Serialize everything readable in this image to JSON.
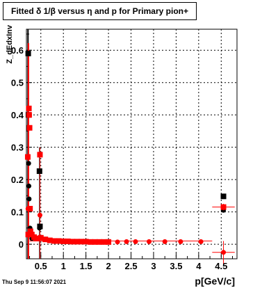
{
  "page_title": "Fitted δ 1/β versus η and p for Primary pion+",
  "timestamp": "Thu Sep  9 11:56:07 2021",
  "chart_data": {
    "type": "scatter",
    "title": "Fitted δ 1/β versus η and p for Primary pion+",
    "xlabel": "p[GeV/c]",
    "ylabel": "Z_dEdxInv",
    "xlim": [
      0.18,
      4.85
    ],
    "ylim": [
      -0.045,
      0.665
    ],
    "x_ticks": [
      0.5,
      1,
      1.5,
      2,
      2.5,
      3,
      3.5,
      4,
      4.5
    ],
    "x_tick_labels": [
      "0.5",
      "1",
      "1.5",
      "2",
      "2.5",
      "3",
      "3.5",
      "4",
      "4.5"
    ],
    "y_ticks": [
      0,
      0.1,
      0.2,
      0.3,
      0.4,
      0.5,
      0.6
    ],
    "y_tick_labels": [
      "0",
      "0.1",
      "0.2",
      "0.3",
      "0.4",
      "0.5",
      "0.6"
    ],
    "grid": true,
    "series": [
      {
        "color": "#000000",
        "points": [
          {
            "x": 0.22,
            "y": 0.59,
            "m": "square"
          },
          {
            "x": 0.225,
            "y": 0.4,
            "m": "square"
          },
          {
            "x": 0.23,
            "y": 0.25,
            "m": "circle"
          },
          {
            "x": 0.235,
            "y": 0.18,
            "m": "circle"
          },
          {
            "x": 0.24,
            "y": 0.14,
            "m": "circle"
          },
          {
            "x": 0.25,
            "y": 0.11,
            "m": "circle"
          },
          {
            "x": 0.26,
            "y": 0.05,
            "m": "circle"
          },
          {
            "x": 0.28,
            "y": 0.03,
            "m": "circle"
          },
          {
            "x": 0.3,
            "y": 0.018,
            "m": "circle"
          },
          {
            "x": 0.47,
            "y": 0.226,
            "m": "square"
          },
          {
            "x": 0.47,
            "y": 0.05,
            "m": "circle"
          },
          {
            "x": 0.48,
            "y": 0.055,
            "m": "square"
          },
          {
            "x": 4.55,
            "y": 0.148,
            "m": "square"
          },
          {
            "x": 4.55,
            "y": 0.105,
            "m": "circle"
          }
        ]
      },
      {
        "color": "#ff0000",
        "points": [
          {
            "x": 0.21,
            "y": 0.27,
            "m": "square"
          },
          {
            "x": 0.215,
            "y": 0.11,
            "m": "circle"
          },
          {
            "x": 0.22,
            "y": 0.03,
            "m": "square"
          },
          {
            "x": 0.235,
            "y": 0.42,
            "m": "square"
          },
          {
            "x": 0.24,
            "y": 0.4,
            "m": "square"
          },
          {
            "x": 0.25,
            "y": 0.36,
            "m": "square"
          },
          {
            "x": 0.26,
            "y": 0.11,
            "m": "square"
          },
          {
            "x": 0.27,
            "y": 0.04,
            "m": "square"
          },
          {
            "x": 0.3,
            "y": 0.03,
            "m": "square"
          },
          {
            "x": 0.35,
            "y": 0.022,
            "m": "square"
          },
          {
            "x": 0.4,
            "y": 0.018,
            "m": "square"
          },
          {
            "x": 0.48,
            "y": 0.277,
            "m": "square"
          },
          {
            "x": 0.48,
            "y": 0.09,
            "m": "circle"
          },
          {
            "x": 0.5,
            "y": 0.02,
            "m": "square"
          },
          {
            "x": 0.6,
            "y": 0.015,
            "m": "square"
          },
          {
            "x": 0.7,
            "y": 0.012,
            "m": "square"
          },
          {
            "x": 0.8,
            "y": 0.01,
            "m": "square"
          },
          {
            "x": 0.9,
            "y": 0.01,
            "m": "square"
          },
          {
            "x": 1.0,
            "y": 0.009,
            "m": "square"
          },
          {
            "x": 1.1,
            "y": 0.009,
            "m": "square"
          },
          {
            "x": 1.2,
            "y": 0.008,
            "m": "square"
          },
          {
            "x": 1.3,
            "y": 0.008,
            "m": "square"
          },
          {
            "x": 1.4,
            "y": 0.008,
            "m": "square"
          },
          {
            "x": 1.5,
            "y": 0.008,
            "m": "square"
          },
          {
            "x": 1.6,
            "y": 0.007,
            "m": "square"
          },
          {
            "x": 1.7,
            "y": 0.007,
            "m": "square"
          },
          {
            "x": 1.8,
            "y": 0.007,
            "m": "square"
          },
          {
            "x": 1.9,
            "y": 0.007,
            "m": "square"
          },
          {
            "x": 2.0,
            "y": 0.007,
            "m": "square"
          },
          {
            "x": 2.2,
            "y": 0.007,
            "m": "circle"
          },
          {
            "x": 2.4,
            "y": 0.008,
            "m": "circle"
          },
          {
            "x": 2.6,
            "y": 0.008,
            "m": "circle"
          },
          {
            "x": 2.9,
            "y": 0.008,
            "m": "circle"
          },
          {
            "x": 3.25,
            "y": 0.008,
            "m": "circle"
          },
          {
            "x": 3.6,
            "y": 0.008,
            "m": "circle"
          },
          {
            "x": 4.05,
            "y": 0.008,
            "m": "circle"
          },
          {
            "x": 4.55,
            "y": 0.115,
            "m": "square",
            "ex": 0.25,
            "ey": 0.01
          },
          {
            "x": 4.55,
            "y": -0.025,
            "m": "circle",
            "ex": 0.25,
            "ey": 0.035
          }
        ]
      }
    ]
  }
}
